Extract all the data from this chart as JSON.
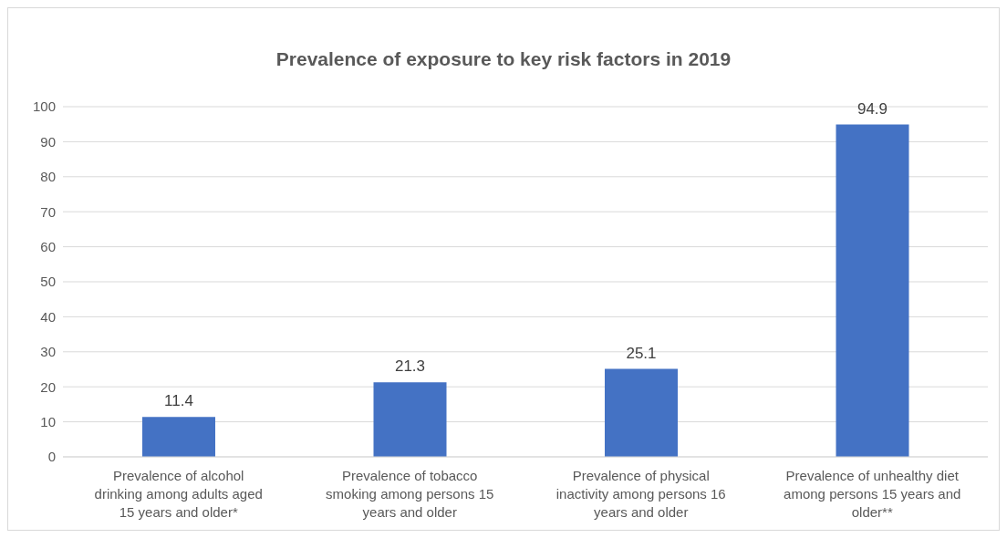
{
  "chart_data": {
    "type": "bar",
    "title": "Prevalence of exposure to key risk factors in 2019",
    "categories": [
      "Prevalence of alcohol drinking among adults aged 15 years and older*",
      "Prevalence of tobacco smoking among persons 15 years and older",
      "Prevalence of physical inactivity among persons 16 years and older",
      "Prevalence of unhealthy diet among persons 15 years and older**"
    ],
    "values": [
      11.4,
      21.3,
      25.1,
      94.9
    ],
    "color": "#4472c4",
    "ylim": [
      0,
      100
    ],
    "yticks": [
      0,
      10,
      20,
      30,
      40,
      50,
      60,
      70,
      80,
      90,
      100
    ],
    "grid": "y",
    "data_labels": true
  }
}
